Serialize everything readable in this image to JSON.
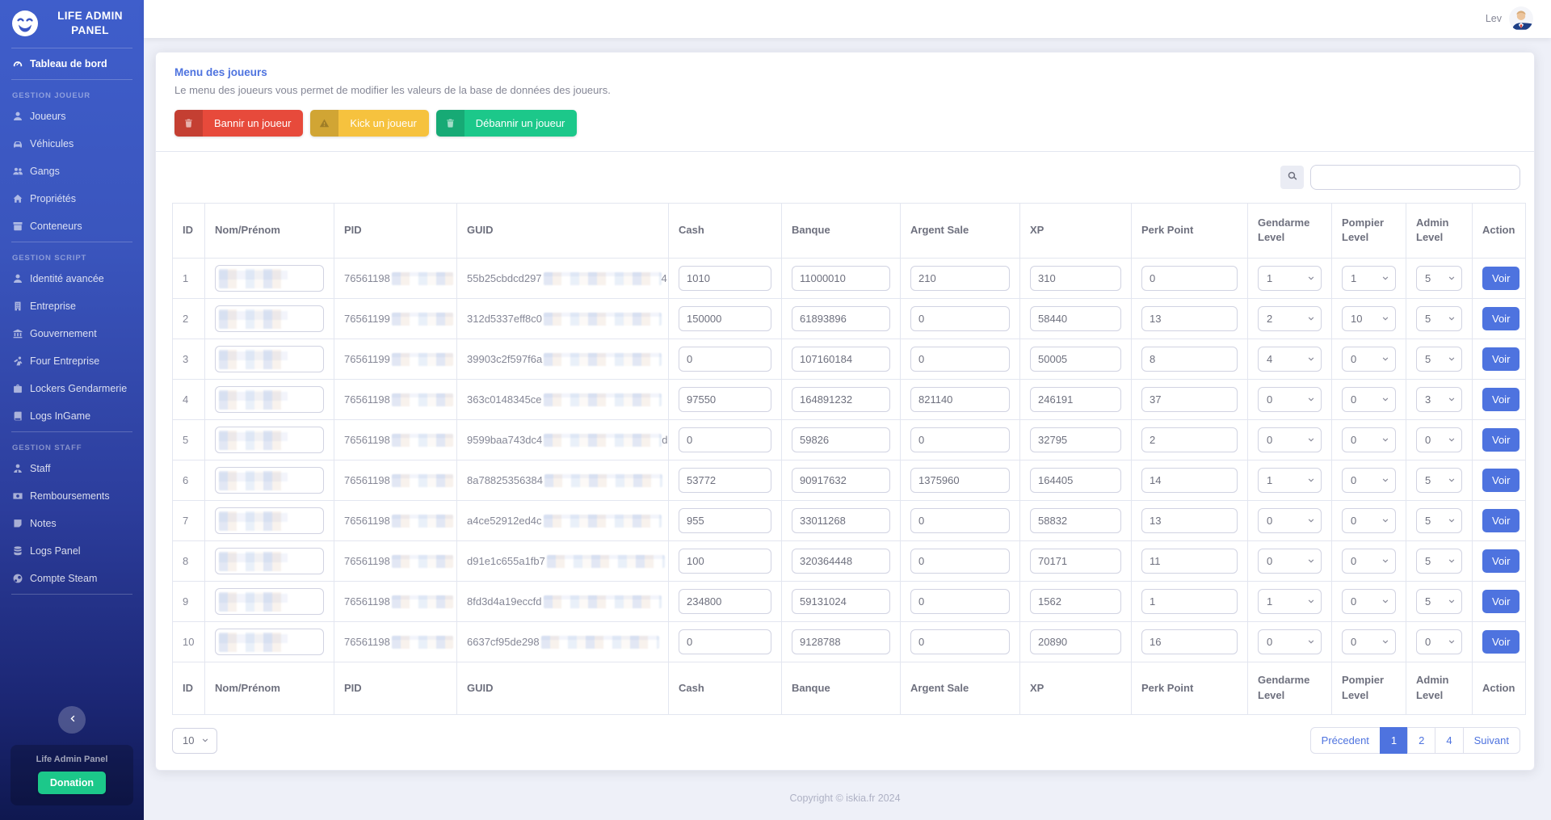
{
  "colors": {
    "primary": "#4e73df",
    "danger": "#e74a3b",
    "warning": "#f6c23e",
    "success": "#1cc88a"
  },
  "brand": {
    "title_line1": "LIFE ADMIN",
    "title_line2": "PANEL",
    "logo_icon": "wink-smiley-icon"
  },
  "topbar": {
    "username": "Lev",
    "avatar_icon": "businessman-avatar-icon"
  },
  "sidebar": {
    "dashboard": {
      "label": "Tableau de bord",
      "icon": "gauge-icon",
      "active": true
    },
    "sections": [
      {
        "heading": "GESTION JOUEUR",
        "items": [
          {
            "label": "Joueurs",
            "icon": "user-icon"
          },
          {
            "label": "Véhicules",
            "icon": "car-icon"
          },
          {
            "label": "Gangs",
            "icon": "users-icon"
          },
          {
            "label": "Propriétés",
            "icon": "home-icon"
          },
          {
            "label": "Conteneurs",
            "icon": "box-icon"
          }
        ]
      },
      {
        "heading": "GESTION SCRIPT",
        "items": [
          {
            "label": "Identité avancée",
            "icon": "id-user-icon"
          },
          {
            "label": "Entreprise",
            "icon": "building-icon"
          },
          {
            "label": "Gouvernement",
            "icon": "bank-icon"
          },
          {
            "label": "Four Entreprise",
            "icon": "worker-icon"
          },
          {
            "label": "Lockers Gendarmerie",
            "icon": "briefcase-icon"
          },
          {
            "label": "Logs InGame",
            "icon": "book-icon"
          }
        ]
      },
      {
        "heading": "GESTION STAFF",
        "items": [
          {
            "label": "Staff",
            "icon": "user-tie-icon"
          },
          {
            "label": "Remboursements",
            "icon": "money-icon"
          },
          {
            "label": "Notes",
            "icon": "note-icon"
          },
          {
            "label": "Logs Panel",
            "icon": "database-icon"
          },
          {
            "label": "Compte Steam",
            "icon": "steam-icon"
          }
        ]
      }
    ],
    "collapse_icon": "chevron-left-icon",
    "donation": {
      "panel_label": "Life Admin Panel",
      "button_label": "Donation"
    }
  },
  "card": {
    "title": "Menu des joueurs",
    "subtitle": "Le menu des joueurs vous permet de modifier les valeurs de la base de données des joueurs.",
    "buttons": [
      {
        "label": "Bannir un joueur",
        "icon": "trash-icon",
        "color": "#e74a3b"
      },
      {
        "label": "Kick un joueur",
        "icon": "warning-icon",
        "color": "#f6c23e"
      },
      {
        "label": "Débannir un joueur",
        "icon": "trash-icon",
        "color": "#1cc88a"
      }
    ]
  },
  "search": {
    "icon": "search-icon",
    "value": ""
  },
  "table": {
    "columns": [
      "ID",
      "Nom/Prénom",
      "PID",
      "GUID",
      "Cash",
      "Banque",
      "Argent Sale",
      "XP",
      "Perk Point",
      "Gendarme Level",
      "Pompier Level",
      "Admin Level",
      "Action"
    ],
    "action_label": "Voir",
    "page_size": "10",
    "rows": [
      {
        "id": "1",
        "pid": "76561198",
        "guid": "55b25cbdcd297",
        "guid_suffix": "4",
        "cash": "1010",
        "banque": "11000010",
        "argent_sale": "210",
        "xp": "310",
        "perk_point": "0",
        "gendarme_level": "1",
        "pompier_level": "1",
        "admin_level": "5"
      },
      {
        "id": "2",
        "pid": "76561199",
        "guid": "312d5337eff8c0",
        "guid_suffix": "",
        "cash": "150000",
        "banque": "61893896",
        "argent_sale": "0",
        "xp": "58440",
        "perk_point": "13",
        "gendarme_level": "2",
        "pompier_level": "10",
        "admin_level": "5"
      },
      {
        "id": "3",
        "pid": "76561199",
        "guid": "39903c2f597f6a",
        "guid_suffix": "",
        "cash": "0",
        "banque": "107160184",
        "argent_sale": "0",
        "xp": "50005",
        "perk_point": "8",
        "gendarme_level": "4",
        "pompier_level": "0",
        "admin_level": "5"
      },
      {
        "id": "4",
        "pid": "76561198",
        "guid": "363c0148345ce",
        "guid_suffix": "",
        "cash": "97550",
        "banque": "164891232",
        "argent_sale": "821140",
        "xp": "246191",
        "perk_point": "37",
        "gendarme_level": "0",
        "pompier_level": "0",
        "admin_level": "3"
      },
      {
        "id": "5",
        "pid": "76561198",
        "guid": "9599baa743dc4",
        "guid_suffix": "d",
        "cash": "0",
        "banque": "59826",
        "argent_sale": "0",
        "xp": "32795",
        "perk_point": "2",
        "gendarme_level": "0",
        "pompier_level": "0",
        "admin_level": "0"
      },
      {
        "id": "6",
        "pid": "76561198",
        "guid": "8a78825356384",
        "guid_suffix": "",
        "cash": "53772",
        "banque": "90917632",
        "argent_sale": "1375960",
        "xp": "164405",
        "perk_point": "14",
        "gendarme_level": "1",
        "pompier_level": "0",
        "admin_level": "5"
      },
      {
        "id": "7",
        "pid": "76561198",
        "guid": "a4ce52912ed4c",
        "guid_suffix": "",
        "cash": "955",
        "banque": "33011268",
        "argent_sale": "0",
        "xp": "58832",
        "perk_point": "13",
        "gendarme_level": "0",
        "pompier_level": "0",
        "admin_level": "5"
      },
      {
        "id": "8",
        "pid": "76561198",
        "guid": "d91e1c655a1fb7",
        "guid_suffix": "",
        "cash": "100",
        "banque": "320364448",
        "argent_sale": "0",
        "xp": "70171",
        "perk_point": "11",
        "gendarme_level": "0",
        "pompier_level": "0",
        "admin_level": "5"
      },
      {
        "id": "9",
        "pid": "76561198",
        "guid": "8fd3d4a19eccfd",
        "guid_suffix": "",
        "cash": "234800",
        "banque": "59131024",
        "argent_sale": "0",
        "xp": "1562",
        "perk_point": "1",
        "gendarme_level": "1",
        "pompier_level": "0",
        "admin_level": "5"
      },
      {
        "id": "10",
        "pid": "76561198",
        "guid": "6637cf95de298",
        "guid_suffix": "",
        "cash": "0",
        "banque": "9128788",
        "argent_sale": "0",
        "xp": "20890",
        "perk_point": "16",
        "gendarme_level": "0",
        "pompier_level": "0",
        "admin_level": "0"
      }
    ]
  },
  "pagination": {
    "prev": "Précedent",
    "pages": [
      {
        "label": "1",
        "active": true
      },
      {
        "label": "2",
        "active": false
      },
      {
        "label": "4",
        "active": false
      }
    ],
    "next": "Suivant"
  },
  "footer": {
    "copyright": "Copyright © iskia.fr 2024"
  }
}
